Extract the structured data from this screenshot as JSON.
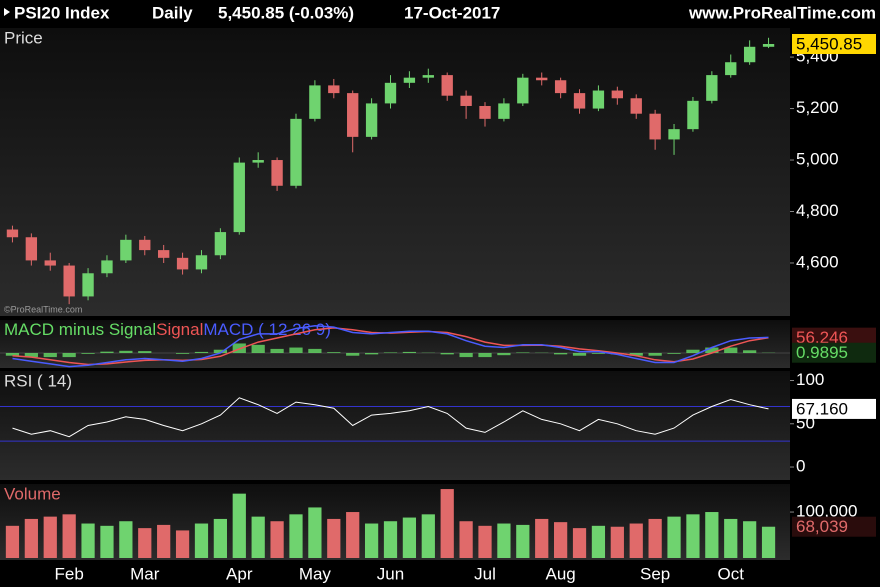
{
  "header": {
    "symbol": "PSI20 Index",
    "period": "Daily",
    "quote": "5,450.85 (-0.03%)",
    "date": "17-Oct-2017",
    "site": "www.ProRealTime.com",
    "watermark": "©ProRealTime.com"
  },
  "chart_data": [
    {
      "type": "candlestick",
      "title": "Price",
      "up_color": "#6fd36f",
      "down_color": "#e06a6a",
      "open": [
        4730,
        4700,
        4610,
        4590,
        4470,
        4560,
        4610,
        4690,
        4650,
        4620,
        4575,
        4630,
        4720,
        4990,
        5000,
        4900,
        5160,
        5290,
        5260,
        5090,
        5220,
        5300,
        5320,
        5330,
        5250,
        5210,
        5160,
        5220,
        5320,
        5310,
        5260,
        5200,
        5270,
        5240,
        5180,
        5080,
        5120,
        5230,
        5330,
        5380,
        5440
      ],
      "high": [
        4745,
        4715,
        4640,
        4600,
        4580,
        4630,
        4710,
        4705,
        4670,
        4640,
        4650,
        4735,
        5010,
        5030,
        5010,
        5180,
        5310,
        5315,
        5270,
        5240,
        5330,
        5345,
        5355,
        5340,
        5270,
        5225,
        5240,
        5335,
        5340,
        5320,
        5275,
        5290,
        5285,
        5255,
        5195,
        5140,
        5245,
        5345,
        5410,
        5465,
        5475
      ],
      "low": [
        4680,
        4590,
        4570,
        4440,
        4455,
        4545,
        4600,
        4630,
        4600,
        4555,
        4560,
        4615,
        4710,
        4970,
        4880,
        4890,
        5150,
        5240,
        5030,
        5080,
        5200,
        5280,
        5300,
        5230,
        5160,
        5130,
        5150,
        5210,
        5290,
        5240,
        5180,
        5190,
        5215,
        5160,
        5040,
        5020,
        5110,
        5220,
        5320,
        5370,
        5435
      ],
      "close": [
        4700,
        4610,
        4590,
        4470,
        4560,
        4610,
        4690,
        4650,
        4620,
        4575,
        4630,
        4720,
        4990,
        5000,
        4900,
        5160,
        5290,
        5260,
        5090,
        5220,
        5300,
        5320,
        5330,
        5250,
        5210,
        5160,
        5220,
        5320,
        5310,
        5260,
        5200,
        5270,
        5240,
        5180,
        5080,
        5120,
        5230,
        5330,
        5380,
        5440,
        5450.85
      ],
      "last_label": "5,450.85",
      "ylim": [
        4394,
        5513
      ],
      "yticks": [
        {
          "value": 4600,
          "label": "4,600"
        },
        {
          "value": 4800,
          "label": "4,800"
        },
        {
          "value": 5000,
          "label": "5,000"
        },
        {
          "value": 5200,
          "label": "5,200"
        },
        {
          "value": 5400,
          "label": "5,400"
        }
      ]
    },
    {
      "type": "combo",
      "ylim": [
        -55,
        121
      ],
      "series": [
        {
          "name": "MACD minus Signal",
          "color": "#66dd66",
          "style": "histogram",
          "values": [
            -10,
            -15,
            -15,
            -15,
            -3,
            5,
            8,
            7,
            0,
            -3,
            4,
            12,
            35,
            30,
            15,
            20,
            15,
            3,
            -10,
            -5,
            2,
            4,
            1,
            -5,
            -15,
            -15,
            -8,
            2,
            1,
            -5,
            -10,
            -3,
            -5,
            -10,
            -10,
            -3,
            12,
            20,
            20,
            10,
            0.9895
          ]
        },
        {
          "name": "Signal",
          "color": "#ee5555",
          "style": "line",
          "values": [
            -10,
            -15,
            -25,
            -35,
            -42,
            -40,
            -33,
            -27,
            -25,
            -27,
            -24,
            -12,
            15,
            40,
            55,
            70,
            85,
            92,
            85,
            75,
            73,
            76,
            79,
            75,
            60,
            40,
            28,
            28,
            29,
            25,
            15,
            8,
            0,
            -10,
            -25,
            -32,
            -22,
            0,
            25,
            45,
            56.246
          ]
        },
        {
          "name": "MACD ( 12 26 9)",
          "color": "#4a5cff",
          "style": "line",
          "values": [
            -20,
            -30,
            -40,
            -50,
            -45,
            -35,
            -25,
            -20,
            -25,
            -30,
            -20,
            0,
            50,
            70,
            70,
            90,
            100,
            95,
            75,
            70,
            75,
            80,
            80,
            70,
            45,
            25,
            20,
            30,
            30,
            20,
            5,
            5,
            -5,
            -20,
            -35,
            -35,
            -10,
            20,
            45,
            55,
            57.2355
          ]
        }
      ]
    },
    {
      "type": "line",
      "title": "RSI ( 14)",
      "color": "#ffffff",
      "level_color": "#3333cc",
      "values": [
        45,
        38,
        42,
        35,
        48,
        52,
        58,
        55,
        48,
        42,
        50,
        60,
        80,
        72,
        62,
        75,
        72,
        68,
        48,
        60,
        62,
        65,
        70,
        62,
        45,
        40,
        52,
        65,
        55,
        50,
        42,
        55,
        50,
        42,
        38,
        45,
        60,
        70,
        78,
        72,
        67.16
      ],
      "last_label": "67.160",
      "levels": [
        70,
        30
      ],
      "ylim": [
        -15,
        111
      ],
      "yticks": [
        0,
        50,
        100
      ]
    },
    {
      "type": "bar",
      "title": "Volume",
      "categories": [
        null,
        null,
        null,
        "Feb",
        null,
        null,
        null,
        "Mar",
        null,
        null,
        null,
        null,
        "Apr",
        null,
        null,
        null,
        "May",
        null,
        null,
        null,
        "Jun",
        null,
        null,
        null,
        null,
        "Jul",
        null,
        null,
        null,
        "Aug",
        null,
        null,
        null,
        null,
        "Sep",
        null,
        null,
        null,
        "Oct",
        null,
        null
      ],
      "values": [
        70000,
        85000,
        90000,
        95000,
        75000,
        70000,
        80000,
        65000,
        72000,
        60000,
        75000,
        85000,
        140000,
        90000,
        80000,
        95000,
        110000,
        85000,
        100000,
        75000,
        80000,
        88000,
        95000,
        150000,
        80000,
        70000,
        75000,
        72000,
        85000,
        78000,
        65000,
        70000,
        68000,
        75000,
        85000,
        90000,
        95000,
        100000,
        85000,
        80000,
        68039
      ],
      "last_label": "68,039",
      "ylim": [
        0,
        161000
      ],
      "yticks": [
        {
          "value": 100000,
          "label": "100,000"
        }
      ]
    }
  ]
}
